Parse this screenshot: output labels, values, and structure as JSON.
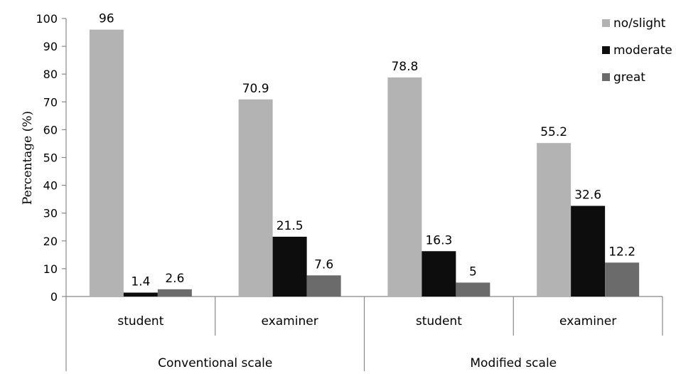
{
  "chart_data": {
    "type": "bar",
    "ylabel": "Percentage (%)",
    "ylim": [
      0,
      100
    ],
    "yticks": [
      0,
      10,
      20,
      30,
      40,
      50,
      60,
      70,
      80,
      90,
      100
    ],
    "groups": [
      {
        "label": "Conventional scale",
        "categories": [
          "student",
          "examiner"
        ]
      },
      {
        "label": "Modified scale",
        "categories": [
          "student",
          "examiner"
        ]
      }
    ],
    "categories": [
      "student",
      "examiner",
      "student",
      "examiner"
    ],
    "series": [
      {
        "name": "no/slight",
        "values": [
          96,
          70.9,
          78.8,
          55.2
        ]
      },
      {
        "name": "moderate",
        "values": [
          1.4,
          21.5,
          16.3,
          32.6
        ]
      },
      {
        "name": "great",
        "values": [
          2.6,
          7.6,
          5,
          12.2
        ]
      }
    ],
    "data_labels": [
      [
        "96",
        "70.9",
        "78.8",
        "55.2"
      ],
      [
        "1.4",
        "21.5",
        "16.3",
        "32.6"
      ],
      [
        "2.6",
        "7.6",
        "5",
        "12.2"
      ]
    ],
    "colors": [
      "#b3b3b3",
      "#0d0d0d",
      "#6b6b6b"
    ],
    "legend_position": "top-right",
    "grid": false
  }
}
